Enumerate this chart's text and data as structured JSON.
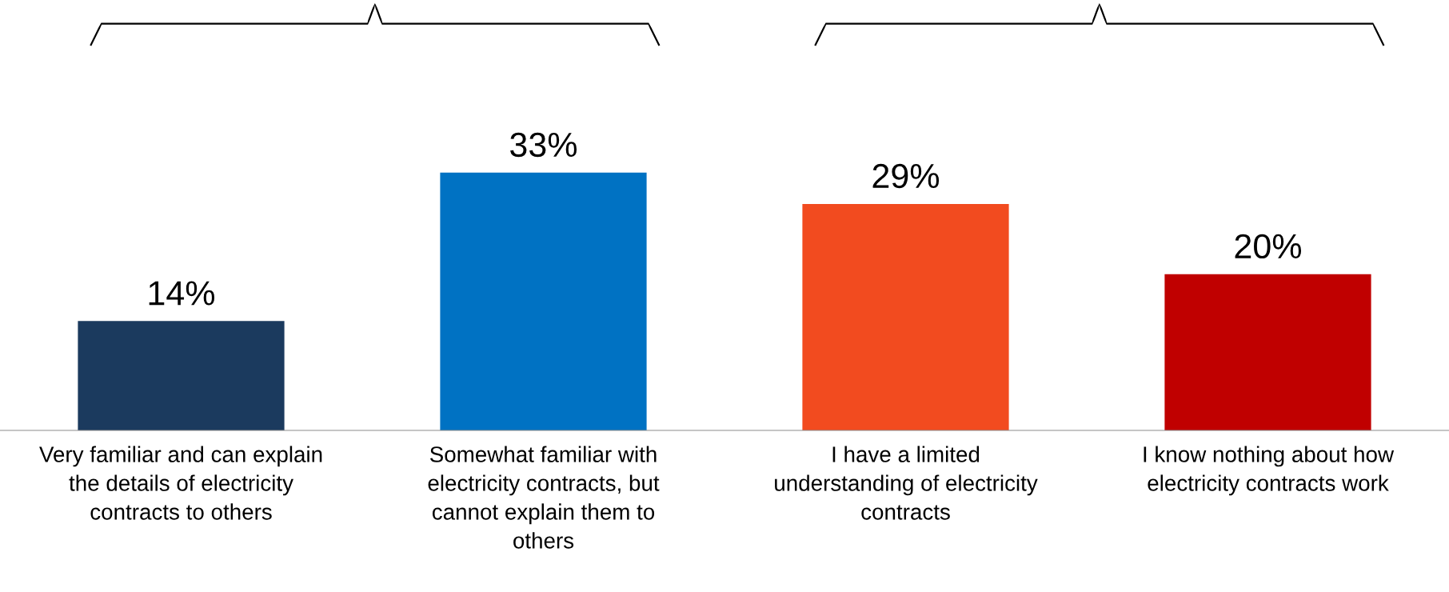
{
  "chart_data": {
    "type": "bar",
    "categories": [
      "Very familiar and can explain\nthe details of electricity\ncontracts to others",
      "Somewhat familiar with\nelectricity contracts, but\ncannot explain them to\nothers",
      "I have a limited\nunderstanding of electricity\ncontracts",
      "I know nothing about how\nelectricity contracts work"
    ],
    "values": [
      14,
      33,
      29,
      20
    ],
    "colors": [
      "#1b3a5e",
      "#0072c3",
      "#f24b1f",
      "#c00000"
    ],
    "value_labels": [
      "14%",
      "33%",
      "29%",
      "20%"
    ],
    "grid": false,
    "legend": false
  }
}
